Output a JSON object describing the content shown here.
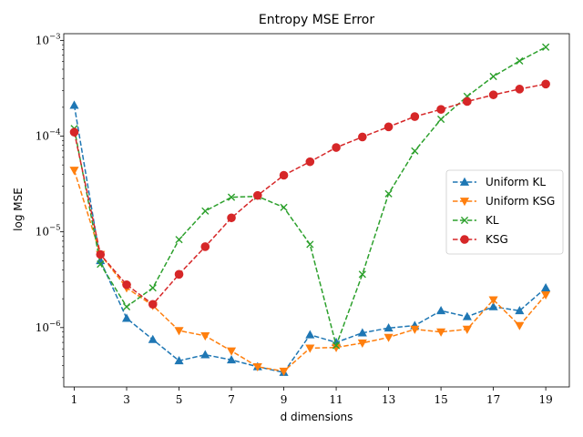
{
  "chart_data": {
    "type": "line",
    "title": "Entropy MSE Error",
    "xlabel": "d dimensions",
    "ylabel": "log MSE",
    "yscale": "log",
    "xlim": [
      0.6,
      19.9
    ],
    "ylim_exp": [
      -6.62,
      -2.93
    ],
    "x_ticks": [
      1,
      3,
      5,
      7,
      9,
      11,
      13,
      15,
      17,
      19
    ],
    "x_tick_labels": [
      "1",
      "3",
      "5",
      "7",
      "9",
      "11",
      "13",
      "15",
      "17",
      "19"
    ],
    "y_ticks_exp": [
      -6,
      -5,
      -4,
      -3
    ],
    "y_tick_labels": [
      "10",
      "10",
      "10",
      "10"
    ],
    "y_tick_exponents": [
      "−6",
      "−5",
      "−4",
      "−3"
    ],
    "legend_position": "center-right",
    "grid": false,
    "x": [
      1,
      2,
      3,
      4,
      5,
      6,
      7,
      8,
      9,
      10,
      11,
      12,
      13,
      14,
      15,
      16,
      17,
      18,
      19
    ],
    "series": [
      {
        "name": "Uniform KL",
        "color": "#1f77b4",
        "marker": "triangle-up",
        "values": [
          0.00021,
          5e-06,
          1.25e-06,
          7.5e-07,
          4.5e-07,
          5.2e-07,
          4.6e-07,
          3.9e-07,
          3.4e-07,
          8.4e-07,
          7e-07,
          8.8e-07,
          9.9e-07,
          1.05e-06,
          1.5e-06,
          1.3e-06,
          1.65e-06,
          1.5e-06,
          2.6e-06
        ]
      },
      {
        "name": "Uniform KSG",
        "color": "#ff7f0e",
        "marker": "triangle-down",
        "values": [
          4.4e-05,
          5.8e-06,
          2.6e-06,
          1.7e-06,
          9.3e-07,
          8.2e-07,
          5.7e-07,
          3.9e-07,
          3.5e-07,
          6.1e-07,
          6.2e-07,
          6.9e-07,
          7.9e-07,
          9.6e-07,
          9e-07,
          9.6e-07,
          1.95e-06,
          1.05e-06,
          2.2e-06
        ]
      },
      {
        "name": "KL",
        "color": "#2ca02c",
        "marker": "x",
        "values": [
          0.00012,
          4.6e-06,
          1.65e-06,
          2.6e-06,
          8.3e-06,
          1.65e-05,
          2.3e-05,
          2.35e-05,
          1.8e-05,
          7.4e-06,
          6.5e-07,
          3.6e-06,
          2.5e-05,
          7e-05,
          0.00015,
          0.00026,
          0.00042,
          0.00061,
          0.00085
        ]
      },
      {
        "name": "KSG",
        "color": "#d62728",
        "marker": "circle",
        "values": [
          0.00011,
          5.8e-06,
          2.8e-06,
          1.75e-06,
          3.6e-06,
          7e-06,
          1.4e-05,
          2.4e-05,
          3.9e-05,
          5.4e-05,
          7.6e-05,
          9.8e-05,
          0.000125,
          0.00016,
          0.00019,
          0.00023,
          0.00027,
          0.00031,
          0.00035
        ]
      }
    ]
  }
}
